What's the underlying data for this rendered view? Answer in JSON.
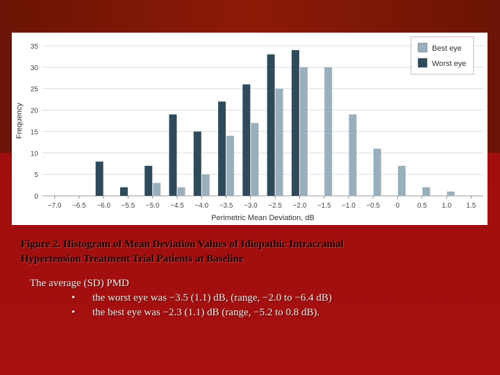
{
  "chart_data": {
    "type": "bar",
    "xlabel": "Perimetric Mean Deviation, dB",
    "ylabel": "Frequency",
    "ylim": [
      0,
      35
    ],
    "yticks": [
      0,
      5,
      10,
      15,
      20,
      25,
      30,
      35
    ],
    "categories": [
      "−7.0",
      "−6.5",
      "−6.0",
      "−5.5",
      "−5.0",
      "−4.5",
      "−4.0",
      "−3.5",
      "−3.0",
      "−2.5",
      "−2.0",
      "−1.5",
      "−1.0",
      "−0.5",
      "0",
      "0.5",
      "1.0",
      "1.5"
    ],
    "series": [
      {
        "name": "Best eye",
        "color": "#9aafbc",
        "values": [
          0,
          0,
          0,
          0,
          3,
          2,
          5,
          14,
          17,
          25,
          30,
          30,
          19,
          11,
          7,
          2,
          1,
          0
        ]
      },
      {
        "name": "Worst eye",
        "color": "#2f4a5a",
        "values": [
          0,
          0,
          8,
          2,
          7,
          19,
          15,
          22,
          26,
          33,
          34,
          0,
          0,
          0,
          0,
          0,
          0,
          0
        ]
      }
    ],
    "legend_position": "top-right",
    "grid": "horizontal"
  },
  "caption": {
    "line1": "Figure 2. Histogram of Mean Deviation Values of Idiopathic Intracranial",
    "line2": "Hypertension Treatment Trial Patients at Baseline"
  },
  "notes": {
    "intro": "The average (SD) PMD",
    "bullet_char": "•",
    "bullets": [
      "the worst eye was −3.5 (1.1) dB, (range, −2.0 to −6.4 dB)",
      "the best eye was −2.3 (1.1) dB (range, −5.2 to 0.8 dB)."
    ]
  }
}
